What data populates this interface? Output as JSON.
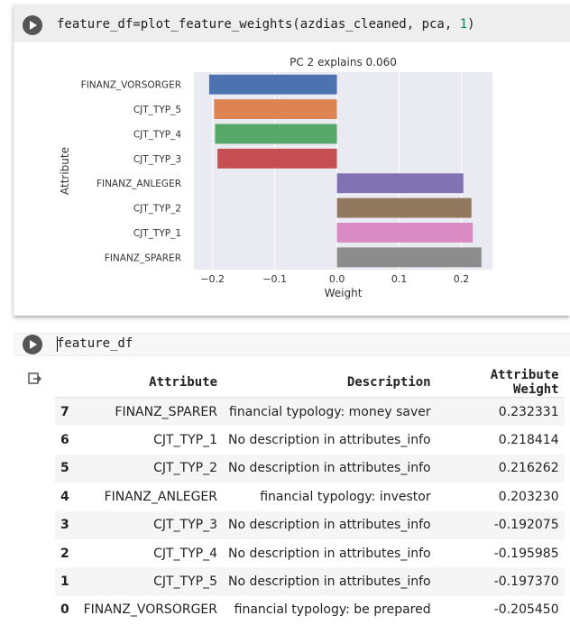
{
  "cell1": {
    "code_prefix": "feature_df=plot_feature_weights(azdias_cleaned, pca, ",
    "code_number": "1",
    "code_suffix": ")"
  },
  "cell2": {
    "code": "feature_df"
  },
  "chart_data": {
    "type": "bar",
    "orientation": "horizontal",
    "title": "PC 2 explains 0.060",
    "xlabel": "Weight",
    "ylabel": "Attribute",
    "xlim": [
      -0.23,
      0.25
    ],
    "xticks": [
      -0.2,
      -0.1,
      0.0,
      0.1,
      0.2
    ],
    "xtick_labels": [
      "−0.2",
      "−0.1",
      "0.0",
      "0.1",
      "0.2"
    ],
    "grid": true,
    "categories": [
      "FINANZ_VORSORGER",
      "CJT_TYP_5",
      "CJT_TYP_4",
      "CJT_TYP_3",
      "FINANZ_ANLEGER",
      "CJT_TYP_2",
      "CJT_TYP_1",
      "FINANZ_SPARER"
    ],
    "values": [
      -0.20545,
      -0.19737,
      -0.195985,
      -0.192075,
      0.20323,
      0.216262,
      0.218414,
      0.232331
    ],
    "colors": [
      "#4c72b0",
      "#dd8452",
      "#55a868",
      "#c44e52",
      "#8172b3",
      "#937860",
      "#da8bc3",
      "#8c8c8c"
    ]
  },
  "table": {
    "headers": [
      "",
      "Attribute",
      "Description",
      "Attribute Weight"
    ],
    "rows": [
      {
        "index": "7",
        "attribute": "FINANZ_SPARER",
        "description": "financial typology: money saver",
        "weight": "0.232331"
      },
      {
        "index": "6",
        "attribute": "CJT_TYP_1",
        "description": "No description in attributes_info",
        "weight": "0.218414"
      },
      {
        "index": "5",
        "attribute": "CJT_TYP_2",
        "description": "No description in attributes_info",
        "weight": "0.216262"
      },
      {
        "index": "4",
        "attribute": "FINANZ_ANLEGER",
        "description": "financial typology: investor",
        "weight": "0.203230"
      },
      {
        "index": "3",
        "attribute": "CJT_TYP_3",
        "description": "No description in attributes_info",
        "weight": "-0.192075"
      },
      {
        "index": "2",
        "attribute": "CJT_TYP_4",
        "description": "No description in attributes_info",
        "weight": "-0.195985"
      },
      {
        "index": "1",
        "attribute": "CJT_TYP_5",
        "description": "No description in attributes_info",
        "weight": "-0.197370"
      },
      {
        "index": "0",
        "attribute": "FINANZ_VORSORGER",
        "description": "financial typology: be prepared",
        "weight": "-0.205450"
      }
    ]
  }
}
